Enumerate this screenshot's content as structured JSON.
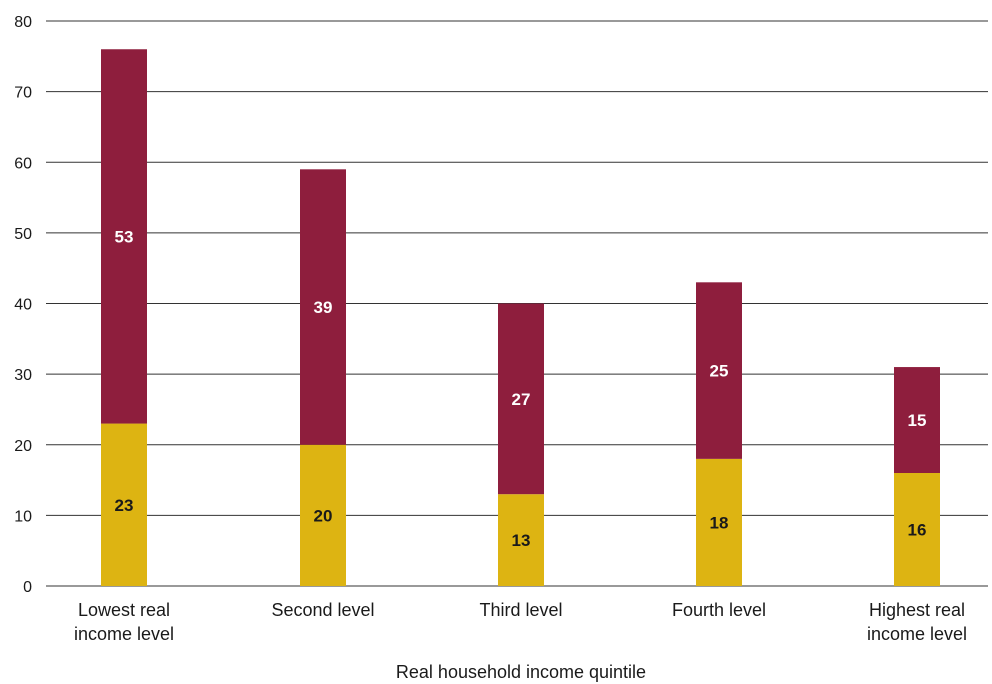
{
  "chart_data": {
    "type": "bar",
    "stacked": true,
    "categories": [
      [
        "Lowest real",
        "income level"
      ],
      [
        "Second level"
      ],
      [
        "Third level"
      ],
      [
        "Fourth level"
      ],
      [
        "Highest real",
        "income level"
      ]
    ],
    "series": [
      {
        "values": [
          23,
          20,
          13,
          18,
          16
        ],
        "color": "#DDB412",
        "label_color": "#1a1a1a"
      },
      {
        "values": [
          53,
          39,
          27,
          25,
          15
        ],
        "color": "#8E1E3D",
        "label_color": "#ffffff"
      }
    ],
    "xlabel": "Real household income quintile",
    "ylabel": "",
    "ylim": [
      0,
      80
    ],
    "yticks": [
      0,
      10,
      20,
      30,
      40,
      50,
      60,
      70,
      80
    ],
    "grid": true,
    "legend": "none"
  }
}
